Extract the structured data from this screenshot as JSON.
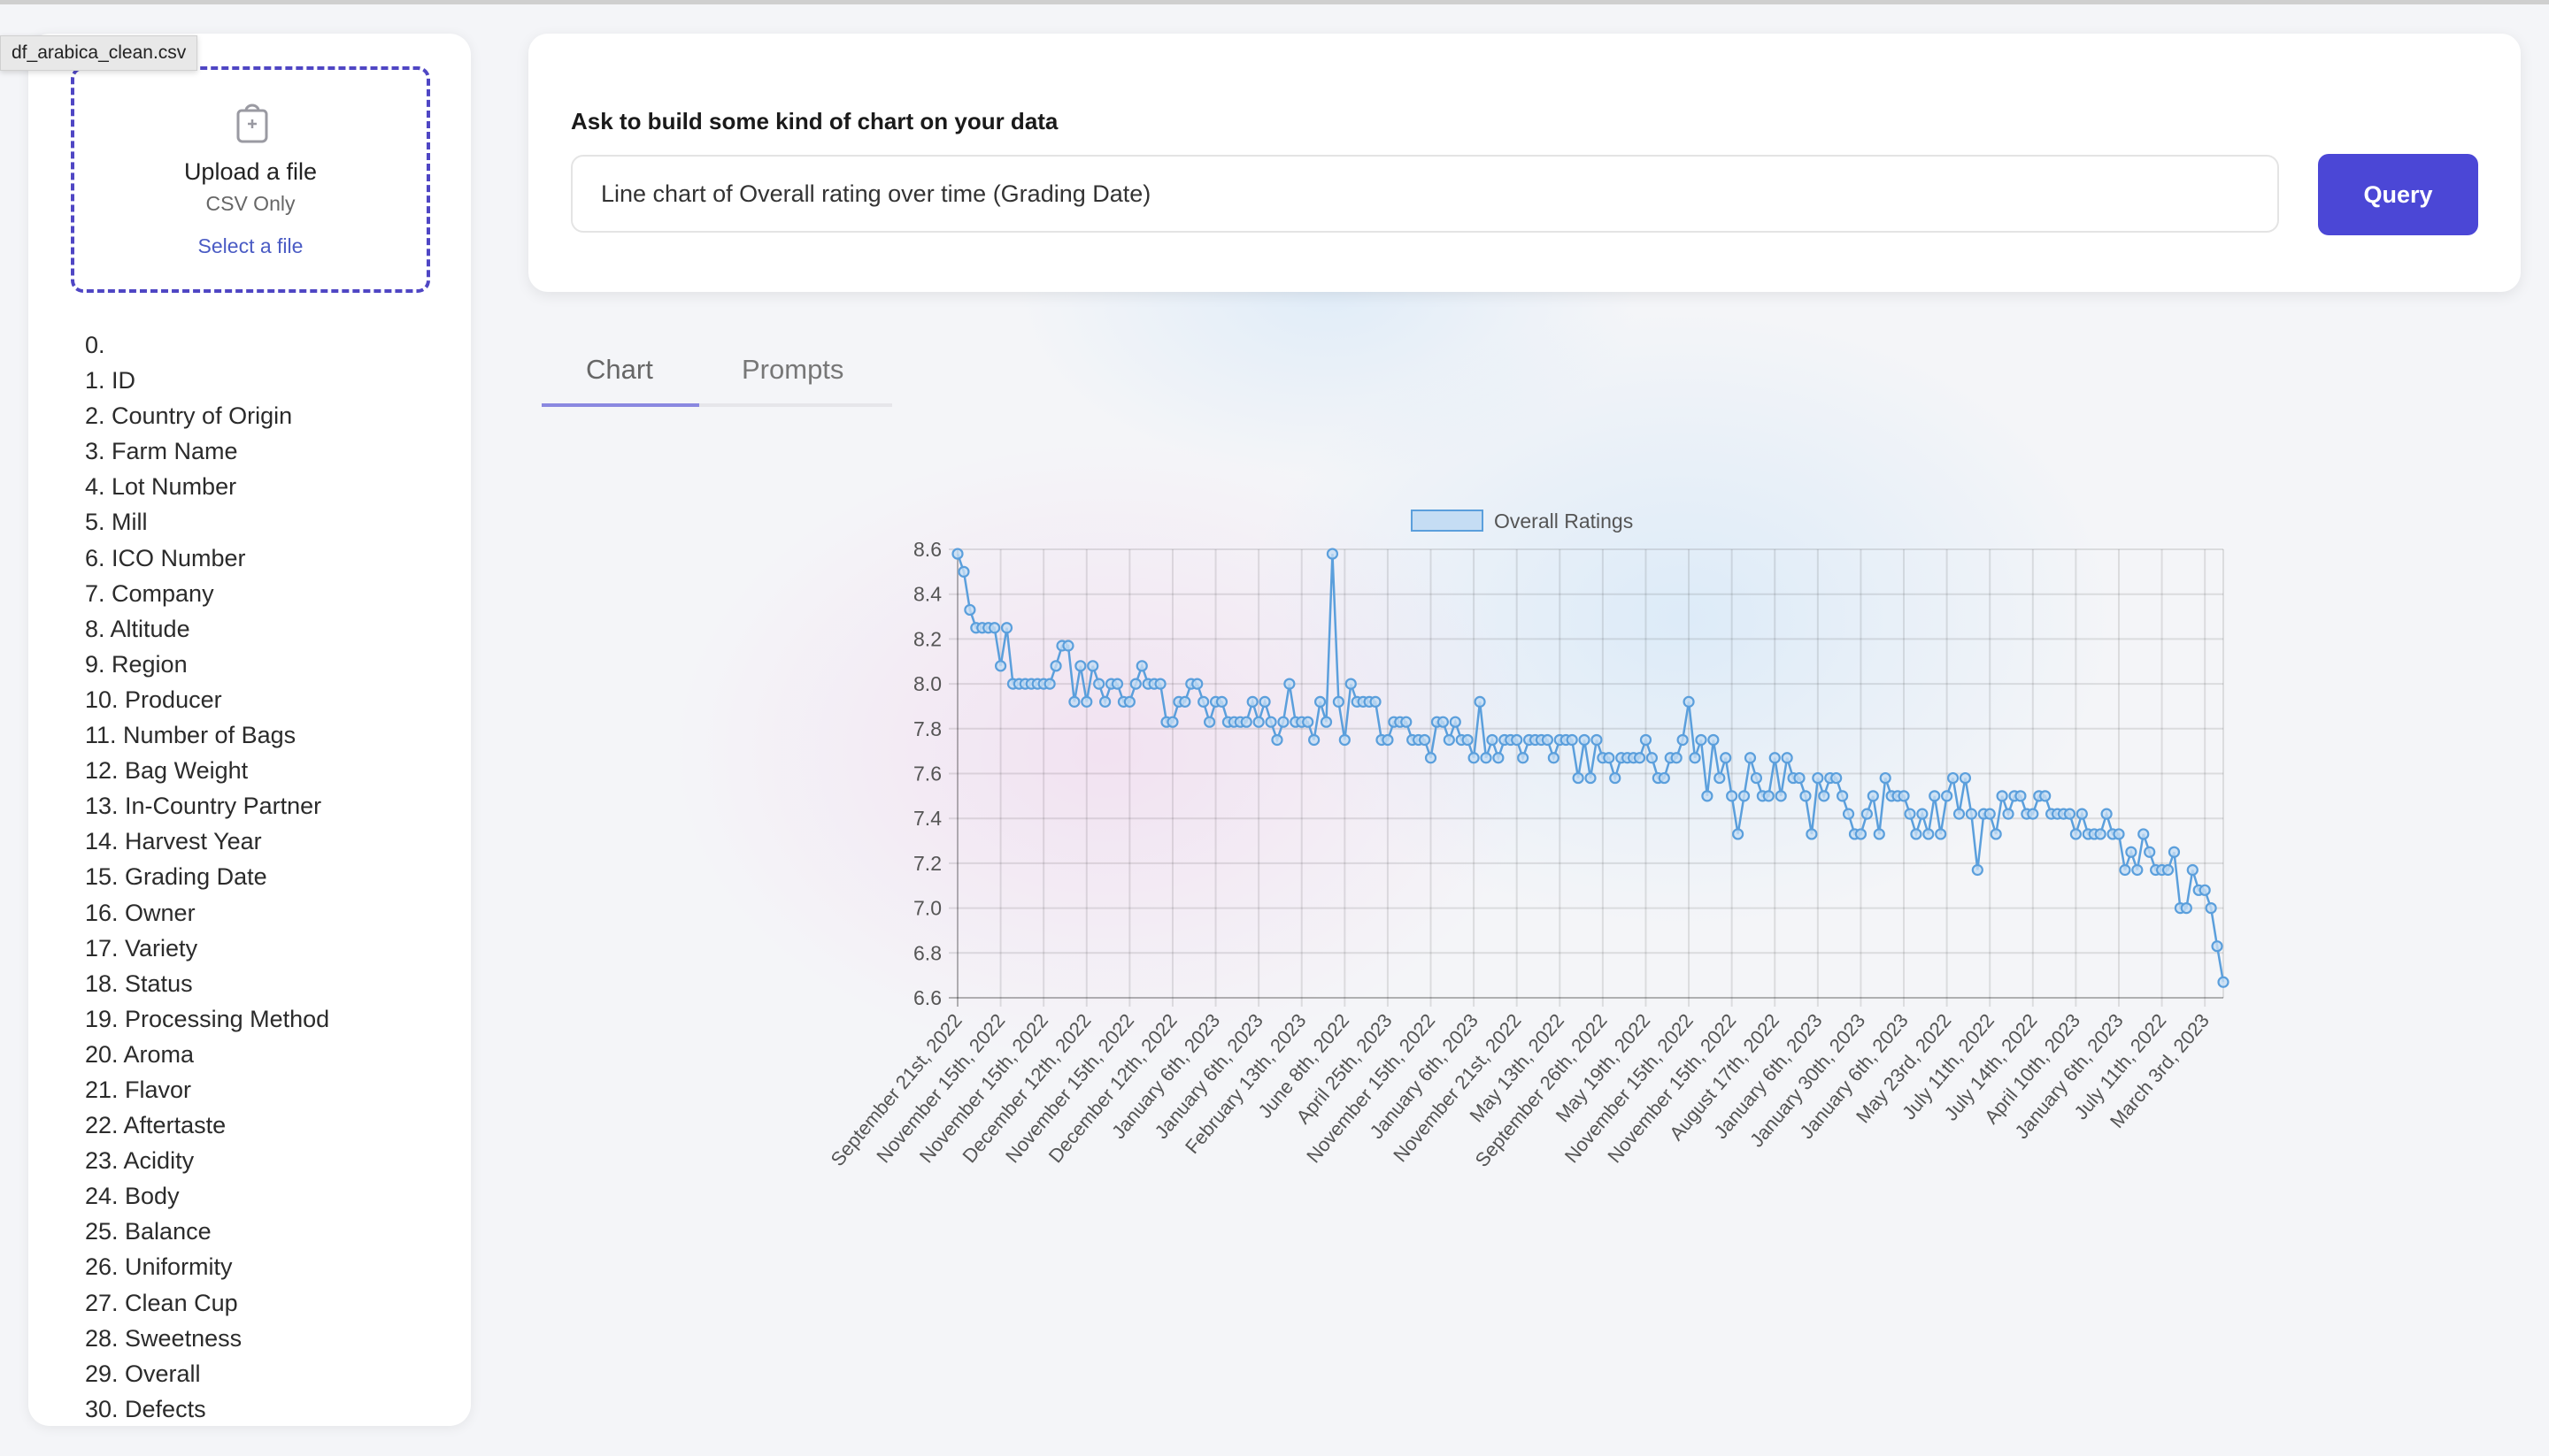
{
  "tooltip": "df_arabica_clean.csv",
  "upload": {
    "title": "Upload a file",
    "subtitle": "CSV Only",
    "link": "Select a file"
  },
  "columns": [
    "0.",
    "1. ID",
    "2. Country of Origin",
    "3. Farm Name",
    "4. Lot Number",
    "5. Mill",
    "6. ICO Number",
    "7. Company",
    "8. Altitude",
    "9. Region",
    "10. Producer",
    "11. Number of Bags",
    "12. Bag Weight",
    "13. In-Country Partner",
    "14. Harvest Year",
    "15. Grading Date",
    "16. Owner",
    "17. Variety",
    "18. Status",
    "19. Processing Method",
    "20. Aroma",
    "21. Flavor",
    "22. Aftertaste",
    "23. Acidity",
    "24. Body",
    "25. Balance",
    "26. Uniformity",
    "27. Clean Cup",
    "28. Sweetness",
    "29. Overall",
    "30. Defects"
  ],
  "query": {
    "label": "Ask to build some kind of chart on your data",
    "value": "Line chart of Overall rating over time (Grading Date)",
    "button": "Query"
  },
  "tabs": [
    {
      "label": "Chart",
      "active": true
    },
    {
      "label": "Prompts",
      "active": false
    }
  ],
  "colors": {
    "accent": "#4b47d6",
    "line": "#5b9fdc",
    "point_fill": "#c5ddf4"
  },
  "chart_data": {
    "type": "line",
    "legend": "Overall Ratings",
    "legend_position": "top",
    "xlabel": "",
    "ylabel": "",
    "ylim": [
      6.6,
      8.6
    ],
    "yticks": [
      "8.6",
      "8.4",
      "8.2",
      "8.0",
      "7.8",
      "7.6",
      "7.4",
      "7.2",
      "7.0",
      "6.8",
      "6.6"
    ],
    "tick_every": 7,
    "xtick_labels": [
      "September 21st, 2022",
      "November 15th, 2022",
      "November 15th, 2022",
      "December 12th, 2022",
      "November 15th, 2022",
      "December 12th, 2022",
      "January 6th, 2023",
      "January 6th, 2023",
      "February 13th, 2023",
      "June 8th, 2022",
      "April 25th, 2023",
      "November 15th, 2022",
      "January 6th, 2023",
      "November 21st, 2022",
      "May 13th, 2022",
      "September 26th, 2022",
      "May 19th, 2022",
      "November 15th, 2022",
      "November 15th, 2022",
      "August 17th, 2022",
      "January 6th, 2023",
      "January 30th, 2023",
      "January 6th, 2023",
      "May 23rd, 2022",
      "July 11th, 2022",
      "July 14th, 2022",
      "April 10th, 2023",
      "January 6th, 2023",
      "July 11th, 2022",
      "March 3rd, 2023"
    ],
    "values": [
      8.58,
      8.5,
      8.33,
      8.25,
      8.25,
      8.25,
      8.25,
      8.08,
      8.25,
      8.0,
      8.0,
      8.0,
      8.0,
      8.0,
      8.0,
      8.0,
      8.08,
      8.17,
      8.17,
      7.92,
      8.08,
      7.92,
      8.08,
      8.0,
      7.92,
      8.0,
      8.0,
      7.92,
      7.92,
      8.0,
      8.08,
      8.0,
      8.0,
      8.0,
      7.83,
      7.83,
      7.92,
      7.92,
      8.0,
      8.0,
      7.92,
      7.83,
      7.92,
      7.92,
      7.83,
      7.83,
      7.83,
      7.83,
      7.92,
      7.83,
      7.92,
      7.83,
      7.75,
      7.83,
      8.0,
      7.83,
      7.83,
      7.83,
      7.75,
      7.92,
      7.83,
      8.58,
      7.92,
      7.75,
      8.0,
      7.92,
      7.92,
      7.92,
      7.92,
      7.75,
      7.75,
      7.83,
      7.83,
      7.83,
      7.75,
      7.75,
      7.75,
      7.67,
      7.83,
      7.83,
      7.75,
      7.83,
      7.75,
      7.75,
      7.67,
      7.92,
      7.67,
      7.75,
      7.67,
      7.75,
      7.75,
      7.75,
      7.67,
      7.75,
      7.75,
      7.75,
      7.75,
      7.67,
      7.75,
      7.75,
      7.75,
      7.58,
      7.75,
      7.58,
      7.75,
      7.67,
      7.67,
      7.58,
      7.67,
      7.67,
      7.67,
      7.67,
      7.75,
      7.67,
      7.58,
      7.58,
      7.67,
      7.67,
      7.75,
      7.92,
      7.67,
      7.75,
      7.5,
      7.75,
      7.58,
      7.67,
      7.5,
      7.33,
      7.5,
      7.67,
      7.58,
      7.5,
      7.5,
      7.67,
      7.5,
      7.67,
      7.58,
      7.58,
      7.5,
      7.33,
      7.58,
      7.5,
      7.58,
      7.58,
      7.5,
      7.42,
      7.33,
      7.33,
      7.42,
      7.5,
      7.33,
      7.58,
      7.5,
      7.5,
      7.5,
      7.42,
      7.33,
      7.42,
      7.33,
      7.5,
      7.33,
      7.5,
      7.58,
      7.42,
      7.58,
      7.42,
      7.17,
      7.42,
      7.42,
      7.33,
      7.5,
      7.42,
      7.5,
      7.5,
      7.42,
      7.42,
      7.5,
      7.5,
      7.42,
      7.42,
      7.42,
      7.42,
      7.33,
      7.42,
      7.33,
      7.33,
      7.33,
      7.42,
      7.33,
      7.33,
      7.17,
      7.25,
      7.17,
      7.33,
      7.25,
      7.17,
      7.17,
      7.17,
      7.25,
      7.0,
      7.0,
      7.17,
      7.08,
      7.08,
      7.0,
      6.83,
      6.67
    ]
  }
}
